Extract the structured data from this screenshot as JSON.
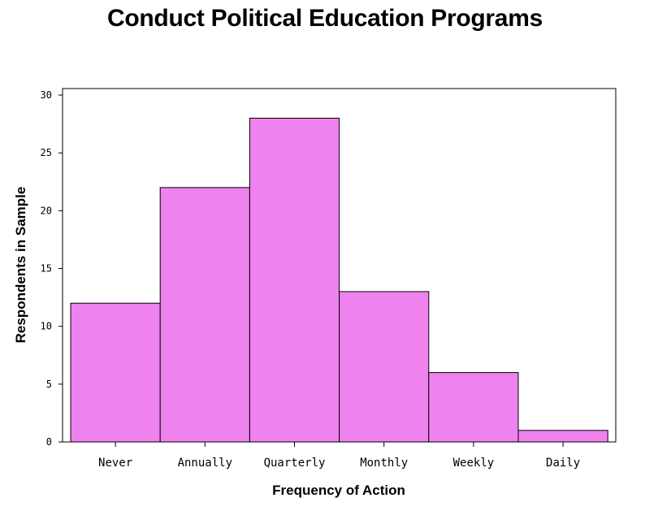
{
  "chart_data": {
    "type": "bar",
    "title": "Conduct Political Education Programs",
    "xlabel": "Frequency of Action",
    "ylabel": "Respondents in Sample",
    "categories": [
      "Never",
      "Annually",
      "Quarterly",
      "Monthly",
      "Weekly",
      "Daily"
    ],
    "values": [
      12,
      22,
      28,
      13,
      6,
      1
    ],
    "ylim": [
      0,
      30
    ],
    "yticks": [
      0,
      5,
      10,
      15,
      20,
      25,
      30
    ],
    "bar_color": "#EE82EE",
    "grid": false,
    "legend": "none"
  }
}
